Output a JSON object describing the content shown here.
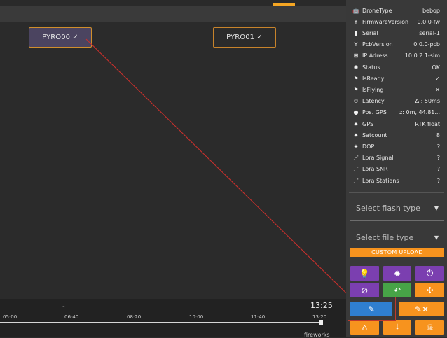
{
  "canvas": {
    "pyro_items": [
      {
        "label": "PYRO00 ✓"
      },
      {
        "label": "PYRO01 ✓"
      }
    ]
  },
  "timeline": {
    "marker": "-",
    "current_time": "13:25",
    "ticks": [
      "05:00",
      "06:40",
      "08:20",
      "10:00",
      "11:40",
      "13:20"
    ],
    "track_label": "fireworks"
  },
  "drone_info": {
    "rows": [
      {
        "icon": "robot-icon",
        "label": "DroneType",
        "value": "bebop"
      },
      {
        "icon": "antenna-icon",
        "label": "FirmwareVersion",
        "value": "0.0.0-fw"
      },
      {
        "icon": "barcode-icon",
        "label": "Serial",
        "value": "serial-1"
      },
      {
        "icon": "antenna-icon",
        "label": "PcbVersion",
        "value": "0.0.0-pcb"
      },
      {
        "icon": "network-icon",
        "label": "IP Adress",
        "value": "10.0.2.1-sim"
      },
      {
        "icon": "alarm-icon",
        "label": "Status",
        "value": "OK"
      },
      {
        "icon": "flag-icon",
        "label": "IsReady",
        "value": "✓"
      },
      {
        "icon": "flag-icon",
        "label": "IsFlying",
        "value": "✕"
      },
      {
        "icon": "timer-icon",
        "label": "Latency",
        "value": "Δ : 50ms"
      },
      {
        "icon": "pin-icon",
        "label": "Pos. GPS",
        "value": "z: 0m, 44.81..."
      },
      {
        "icon": "satellite-icon",
        "label": "GPS",
        "value": "RTK float"
      },
      {
        "icon": "satellite-icon",
        "label": "Satcount",
        "value": "8"
      },
      {
        "icon": "satellite-icon",
        "label": "DOP",
        "value": "?"
      },
      {
        "icon": "signal-icon",
        "label": "Lora Signal",
        "value": "?"
      },
      {
        "icon": "signal-icon",
        "label": "Lora SNR",
        "value": "?"
      },
      {
        "icon": "signal-icon",
        "label": "Lora Stations",
        "value": "?"
      }
    ]
  },
  "flash": {
    "flash_type_placeholder": "Select flash type",
    "file_type_placeholder": "Select file type",
    "custom_upload_label": "CUSTOM UPLOAD"
  },
  "actions": {
    "row1": [
      {
        "icon": "bulb-icon",
        "glyph": "💡",
        "color": "#7b3fb0"
      },
      {
        "icon": "light-icon",
        "glyph": "✹",
        "color": "#7b3fb0"
      },
      {
        "icon": "power-icon",
        "glyph": "⏻",
        "color": "#7b3fb0"
      }
    ],
    "row2": [
      {
        "icon": "compass-icon",
        "glyph": "⊘",
        "color": "#7b3fb0"
      },
      {
        "icon": "undo-icon",
        "glyph": "↶",
        "color": "#47a447"
      },
      {
        "icon": "drone-icon",
        "glyph": "✣",
        "color": "#f7931e"
      }
    ],
    "row3": [
      {
        "icon": "pen-icon",
        "glyph": "✎",
        "color": "#2f7fd0"
      },
      {
        "icon": "pen-cancel-icon",
        "glyph": "✎✕",
        "color": "#f7931e"
      }
    ],
    "row4": [
      {
        "icon": "home-icon",
        "glyph": "⌂",
        "color": "#f7931e"
      },
      {
        "icon": "download-icon",
        "glyph": "⤓",
        "color": "#f7931e"
      },
      {
        "icon": "skull-icon",
        "glyph": "☠",
        "color": "#f7931e"
      }
    ]
  }
}
